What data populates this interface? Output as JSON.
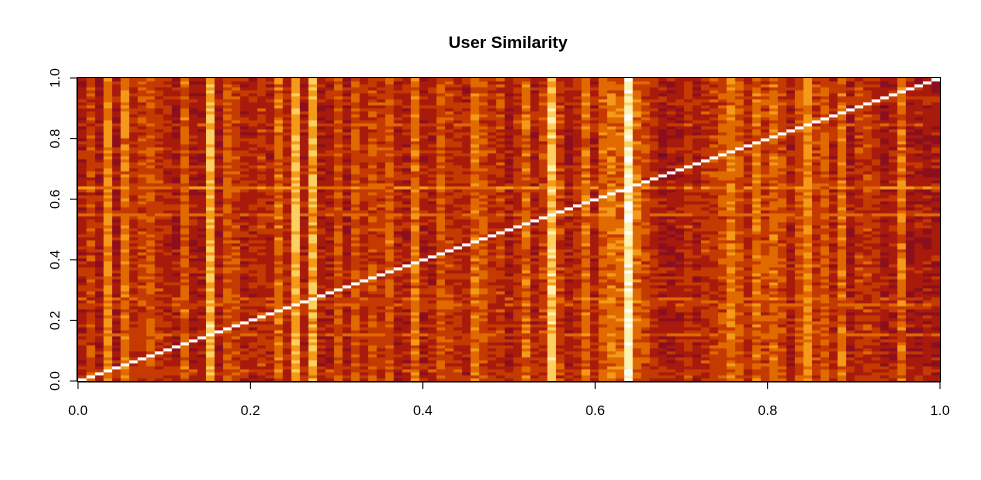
{
  "chart_data": {
    "type": "heatmap",
    "title": "User Similarity",
    "xlabel": "",
    "ylabel": "",
    "xlim": [
      0,
      1
    ],
    "ylim": [
      0,
      1
    ],
    "x_ticks": [
      "0.0",
      "0.2",
      "0.4",
      "0.6",
      "0.8",
      "1.0"
    ],
    "y_ticks": [
      "0.0",
      "0.2",
      "0.4",
      "0.6",
      "0.8",
      "1.0"
    ],
    "x_tick_values": [
      0,
      0.2,
      0.4,
      0.6,
      0.8,
      1.0
    ],
    "y_tick_values": [
      0,
      0.2,
      0.4,
      0.6,
      0.8,
      1.0
    ],
    "n_users": 101,
    "palette": "heat",
    "palette_colors": [
      "#6e0a2a",
      "#8c0f1e",
      "#a81a0c",
      "#c43a00",
      "#e06a00",
      "#f49a18",
      "#fcd060",
      "#fff1b0",
      "#ffffff"
    ],
    "diagonal_similarity": 1.0,
    "highlight_users": [
      {
        "position": 0.64,
        "similarity": 0.92
      },
      {
        "position": 0.55,
        "similarity": 0.75
      },
      {
        "position": 0.15,
        "similarity": 0.7
      },
      {
        "position": 0.27,
        "similarity": 0.62
      },
      {
        "position": 0.25,
        "similarity": 0.66
      },
      {
        "position": 0.03,
        "similarity": 0.55
      },
      {
        "position": 0.85,
        "similarity": 0.55
      },
      {
        "position": 0.76,
        "similarity": 0.5
      }
    ]
  }
}
